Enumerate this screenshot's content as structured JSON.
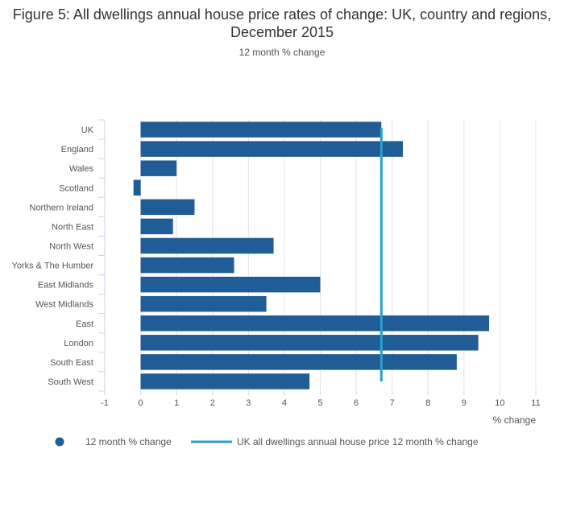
{
  "chart_data": {
    "type": "bar",
    "orientation": "horizontal",
    "title": "Figure 5: All dwellings annual house price rates of change: UK, country and regions, December 2015",
    "subtitle": "12 month % change",
    "xlabel": "% change",
    "ylabel": "",
    "xlim": [
      -1,
      11
    ],
    "xticks": [
      "-1",
      "0",
      "1",
      "2",
      "3",
      "4",
      "5",
      "6",
      "7",
      "8",
      "9",
      "10",
      "11"
    ],
    "categories": [
      "UK",
      "England",
      "Wales",
      "Scotland",
      "Northern Ireland",
      "North East",
      "North West",
      "Yorks & The Humber",
      "East Midlands",
      "West Midlands",
      "East",
      "London",
      "South East",
      "South West"
    ],
    "series": [
      {
        "name": "12 month % change",
        "color": "#205d96",
        "values": [
          6.7,
          7.3,
          1.0,
          -0.2,
          1.5,
          0.9,
          3.7,
          2.6,
          5.0,
          3.5,
          9.7,
          9.4,
          8.8,
          4.7
        ]
      }
    ],
    "reference_line": {
      "name": "UK all dwellings annual house price 12 month % change",
      "value": 6.7,
      "color": "#2a9fd0"
    },
    "grid": true,
    "legend": "bottom"
  }
}
